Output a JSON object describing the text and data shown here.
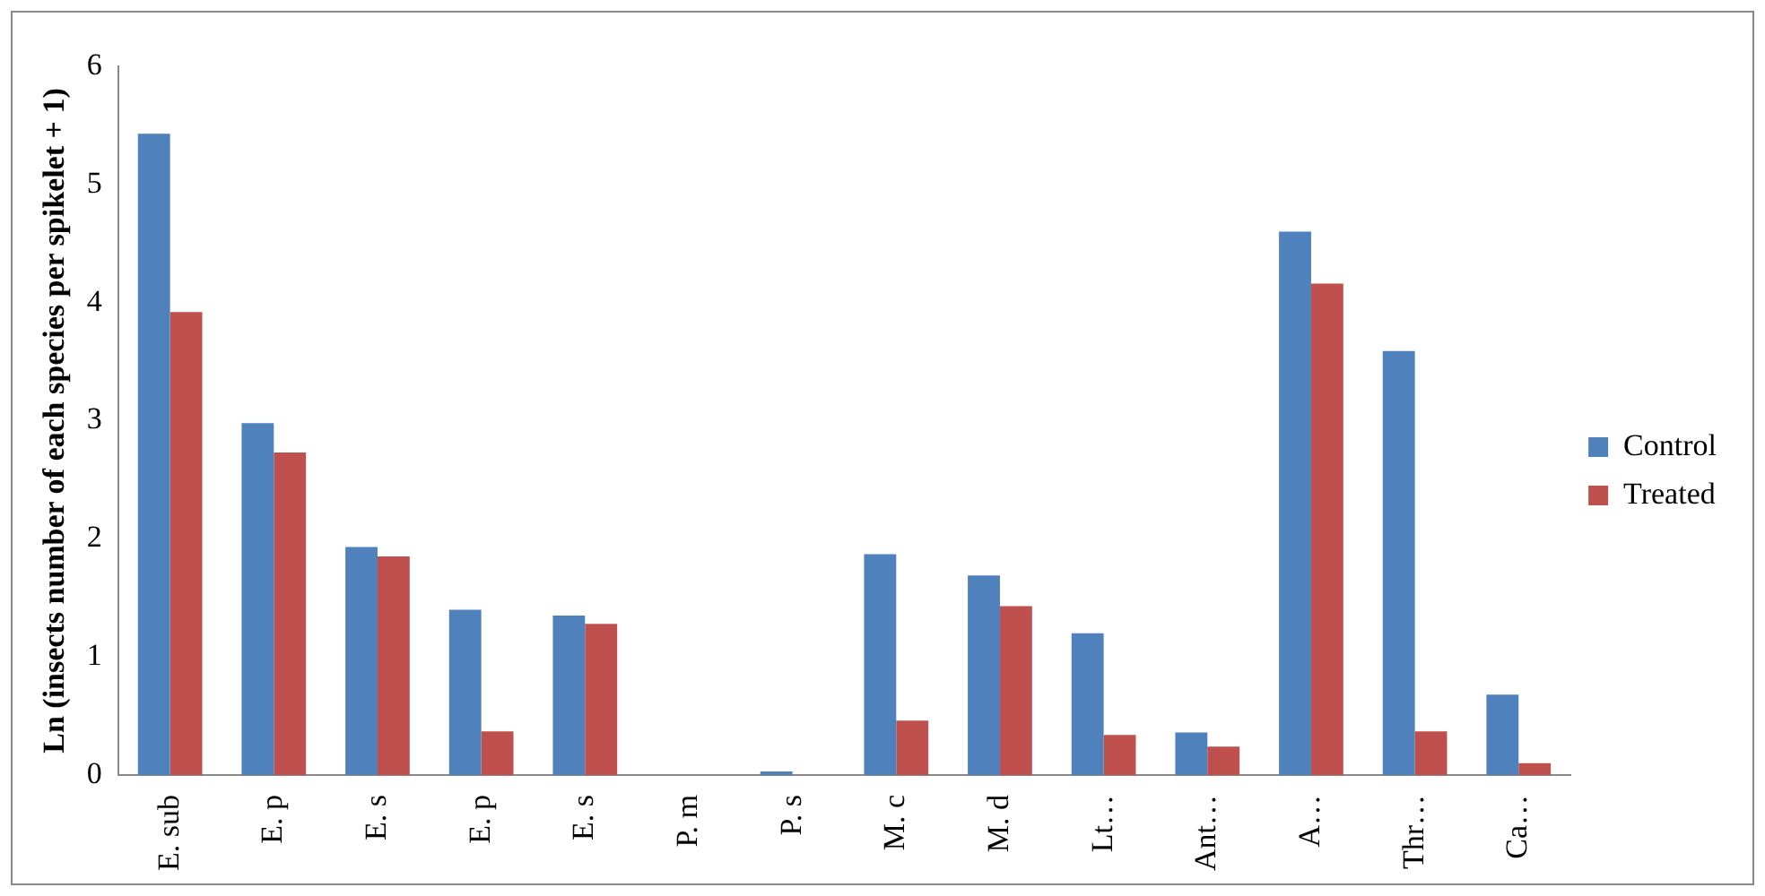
{
  "chart_data": {
    "type": "bar",
    "ylabel": "Ln (insects number of each species per spikelet + 1)",
    "categories": [
      "E. sub",
      "E. p",
      "E. s",
      "E. p",
      "E. s",
      "P. m",
      "P. s",
      "M. c",
      "M. d",
      "Lt…",
      "Ant…",
      "A…",
      "Thr…",
      "Ca…"
    ],
    "series": [
      {
        "name": "Control",
        "color": "#4f81bd",
        "values": [
          5.43,
          2.98,
          1.93,
          1.4,
          1.35,
          0,
          0.03,
          1.87,
          1.69,
          1.2,
          0.36,
          4.6,
          3.59,
          0.68
        ]
      },
      {
        "name": "Treated",
        "color": "#c0504d",
        "values": [
          3.92,
          2.73,
          1.85,
          0.37,
          1.28,
          0,
          0,
          0.46,
          1.43,
          0.34,
          0.24,
          4.16,
          0.37,
          0.1
        ]
      }
    ],
    "ylim": [
      0,
      6
    ],
    "yticks": [
      0,
      1,
      2,
      3,
      4,
      5,
      6
    ],
    "grid": false,
    "legend": "right"
  }
}
